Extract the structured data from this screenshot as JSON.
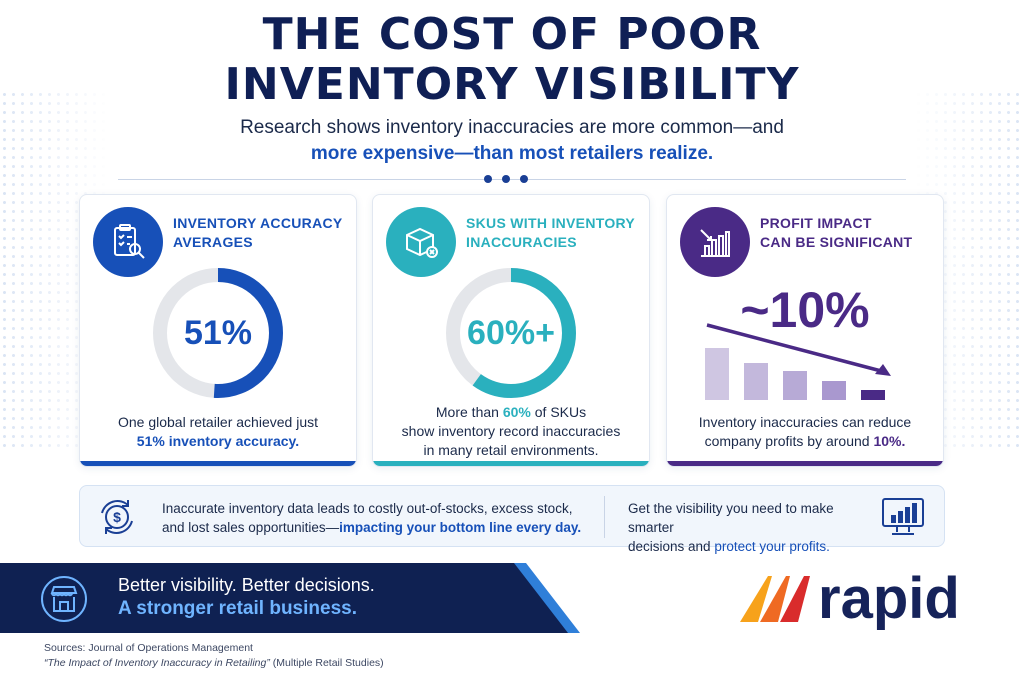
{
  "header": {
    "title_line1": "THE COST OF POOR",
    "title_line2": "INVENTORY VISIBILITY",
    "subtitle_line1": "Research shows inventory inaccuracies are more common—and",
    "subtitle_line2": "more expensive—than most retailers realize."
  },
  "colors": {
    "navy": "#0f1f55",
    "blue": "#1750b8",
    "teal": "#2ab0be",
    "purple": "#4a2a86"
  },
  "cards": [
    {
      "icon": "clipboard-search-icon",
      "heading_line1": "INVENTORY ACCURACY",
      "heading_line2": "AVERAGES",
      "value": "51%",
      "fill_fraction": 0.51,
      "desc_line1": "One global retailer achieved just",
      "desc_line2": "51% inventory accuracy."
    },
    {
      "icon": "box-error-icon",
      "heading_line1": "SKUS WITH INVENTORY",
      "heading_line2": "INACCURACIES",
      "value": "60%+",
      "fill_fraction": 0.6,
      "desc_line1_pre": "More than ",
      "desc_line1_hl": "60%",
      "desc_line1_post": " of SKUs",
      "desc_line2": "show inventory record inaccuracies",
      "desc_line3": "in many retail environments."
    },
    {
      "icon": "declining-chart-icon",
      "heading_line1": "PROFIT IMPACT",
      "heading_line2": "CAN BE SIGNIFICANT",
      "value": "~10%",
      "desc_line1": "Inventory inaccuracies can reduce",
      "desc_line2_pre": "company profits by around ",
      "desc_line2_hl": "10%."
    }
  ],
  "info": {
    "left_line1": "Inaccurate inventory data leads to costly out-of-stocks, excess stock,",
    "left_line2_pre": "and lost sales opportunities—",
    "left_line2_hl": "impacting your bottom line every day.",
    "right_line1": "Get the visibility you need to make smarter",
    "right_line2_pre": "decisions and ",
    "right_line2_hl": "protect your profits."
  },
  "footer": {
    "line1": "Better visibility. Better decisions.",
    "line2": "A stronger retail business.",
    "logo": "rapid"
  },
  "sources": {
    "line1": "Sources: Journal of Operations Management",
    "line2_it": "“The Impact of Inventory Inaccuracy in Retailing”",
    "line2_rest": " (Multiple Retail Studies)"
  }
}
